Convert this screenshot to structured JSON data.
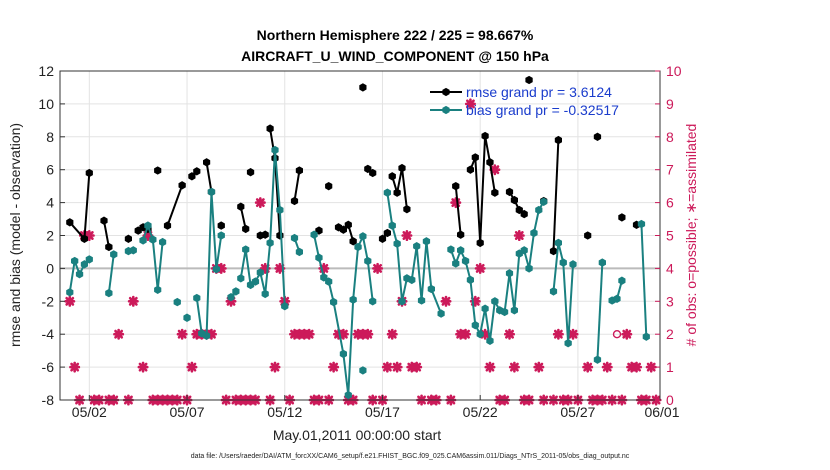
{
  "chart_data": {
    "type": "line",
    "title": [
      "Northern Hemisphere 222 / 225 = 98.667%",
      "AIRCRAFT_U_WIND_COMPONENT @ 150 hPa"
    ],
    "xlabel": "May.01,2011 00:00:00 start",
    "ylabel": "rmse and bias (model - observation)",
    "y2label": "# of obs: o=possible; ∗=assimilated",
    "footnote": "data file: /Users/raeder/DAI/ATM_forcXX/CAM6_setup/f.e21.FHIST_BGC.f09_025.CAM6assim.011/Diags_NTrS_2011-05/obs_diag_output.nc",
    "xlim": [
      0.5,
      31.2
    ],
    "ylim": [
      -8,
      12
    ],
    "y2lim": [
      0,
      10
    ],
    "x_ticks": [
      2,
      7,
      12,
      17,
      22,
      27,
      32
    ],
    "x_tick_labels": [
      "05/02",
      "05/07",
      "05/12",
      "05/17",
      "05/22",
      "05/27",
      "06/01"
    ],
    "y_ticks": [
      -8,
      -6,
      -4,
      -2,
      0,
      2,
      4,
      6,
      8,
      10,
      12
    ],
    "y2_ticks": [
      0,
      1,
      2,
      3,
      4,
      5,
      6,
      7,
      8,
      9,
      10
    ],
    "legend": {
      "location": "top-right",
      "entries": [
        "rmse grand pr = 3.6124",
        "bias grand pr = -0.32517"
      ]
    },
    "series": [
      {
        "name": "rmse",
        "color": "#000000",
        "marker": "hexagon",
        "axis": "left",
        "points": [
          [
            1.0,
            2.8
          ],
          [
            1.75,
            1.8
          ],
          [
            2.0,
            5.8
          ],
          null,
          [
            2.75,
            2.9
          ],
          [
            3.0,
            1.3
          ],
          null,
          [
            4.0,
            1.8
          ],
          null,
          [
            4.5,
            2.3
          ],
          [
            4.75,
            2.5
          ],
          [
            5.0,
            2.4
          ],
          null,
          [
            5.5,
            5.95
          ],
          null,
          [
            6.0,
            2.6
          ],
          [
            6.75,
            5.05
          ],
          null,
          [
            7.25,
            5.6
          ],
          [
            7.5,
            5.9
          ],
          null,
          [
            8.0,
            6.45
          ],
          [
            8.25,
            4.65
          ],
          null,
          [
            8.75,
            2.6
          ],
          null,
          [
            9.75,
            3.75
          ],
          [
            10.0,
            2.4
          ],
          null,
          [
            10.25,
            5.85
          ],
          null,
          [
            10.75,
            2.0
          ],
          [
            11.0,
            2.05
          ],
          null,
          [
            11.25,
            8.5
          ],
          [
            11.5,
            6.7
          ],
          [
            11.75,
            2.0
          ],
          null,
          [
            12.5,
            4.1
          ],
          [
            12.75,
            5.95
          ],
          null,
          [
            13.75,
            2.3
          ],
          null,
          [
            14.25,
            5.0
          ],
          null,
          [
            14.75,
            2.5
          ],
          [
            15.0,
            2.35
          ],
          [
            15.25,
            2.65
          ],
          [
            15.5,
            1.65
          ],
          null,
          [
            16.0,
            11.0
          ],
          null,
          [
            16.25,
            6.05
          ],
          [
            16.5,
            5.8
          ],
          null,
          [
            17.0,
            1.8
          ],
          [
            17.25,
            2.15
          ],
          null,
          [
            17.5,
            5.6
          ],
          [
            17.75,
            4.6
          ],
          [
            18.0,
            6.1
          ],
          [
            18.25,
            3.6
          ],
          null,
          [
            20.75,
            5.0
          ],
          [
            21.0,
            2.05
          ],
          null,
          [
            21.5,
            6.0
          ],
          [
            21.75,
            6.75
          ],
          [
            22.0,
            1.55
          ],
          [
            22.25,
            8.05
          ],
          [
            22.5,
            6.45
          ],
          [
            22.75,
            4.6
          ],
          null,
          [
            23.5,
            4.65
          ],
          [
            23.75,
            4.15
          ],
          [
            24.0,
            3.55
          ],
          [
            24.25,
            3.3
          ],
          null,
          [
            24.5,
            11.45
          ],
          null,
          [
            25.25,
            4.1
          ],
          null,
          [
            25.75,
            1.05
          ],
          [
            26.0,
            7.8
          ],
          null,
          [
            27.5,
            2.0
          ],
          null,
          [
            28.0,
            8.0
          ],
          null,
          [
            29.25,
            3.1
          ],
          null,
          [
            30.0,
            2.65
          ]
        ]
      },
      {
        "name": "bias",
        "color": "#1a8080",
        "marker": "hexagon",
        "axis": "left",
        "points": [
          [
            1.0,
            -1.45
          ],
          [
            1.25,
            0.45
          ],
          [
            1.5,
            -0.35
          ],
          [
            1.75,
            0.25
          ],
          [
            2.0,
            0.55
          ],
          null,
          [
            3.0,
            -1.5
          ],
          [
            3.25,
            0.85
          ],
          null,
          [
            4.0,
            1.05
          ],
          [
            4.25,
            1.1
          ],
          null,
          [
            4.75,
            1.7
          ],
          [
            5.0,
            2.6
          ],
          [
            5.25,
            1.75
          ],
          [
            5.5,
            -1.3
          ],
          [
            5.75,
            1.6
          ],
          null,
          [
            6.5,
            -2.05
          ],
          null,
          [
            7.0,
            -3.0
          ],
          null,
          [
            7.5,
            -1.8
          ],
          [
            7.75,
            -3.95
          ],
          [
            8.0,
            -4.1
          ],
          [
            8.25,
            4.65
          ],
          [
            8.5,
            -0.05
          ],
          [
            8.75,
            2.0
          ],
          null,
          [
            9.25,
            -1.75
          ],
          [
            9.5,
            -1.4
          ],
          null,
          [
            9.75,
            -0.6
          ],
          [
            10.0,
            1.15
          ],
          [
            10.25,
            -1.0
          ],
          [
            10.5,
            -0.8
          ],
          [
            10.75,
            -0.25
          ],
          [
            11.0,
            -1.55
          ],
          [
            11.25,
            1.55
          ],
          [
            11.5,
            7.2
          ],
          [
            11.75,
            3.55
          ],
          [
            12.0,
            -2.3
          ],
          null,
          [
            12.5,
            1.85
          ],
          [
            12.75,
            1.0
          ],
          null,
          [
            13.5,
            2.05
          ],
          [
            13.75,
            0.65
          ],
          [
            14.0,
            -0.55
          ],
          [
            14.25,
            -0.8
          ],
          [
            14.5,
            -2.05
          ],
          [
            15.0,
            -5.2
          ],
          [
            15.25,
            -7.7
          ],
          [
            15.5,
            -1.9
          ],
          [
            15.75,
            1.3
          ],
          [
            16.0,
            1.95
          ],
          [
            16.25,
            0.45
          ],
          [
            16.5,
            -2.0
          ],
          null,
          [
            16.0,
            -6.2
          ],
          null,
          [
            17.25,
            4.6
          ],
          [
            17.5,
            2.6
          ],
          [
            17.75,
            1.5
          ],
          [
            18.0,
            -2.0
          ],
          [
            18.25,
            -0.6
          ],
          [
            18.5,
            -0.7
          ],
          [
            18.75,
            1.35
          ],
          [
            19.0,
            -1.95
          ],
          [
            19.25,
            1.65
          ],
          [
            19.5,
            -1.25
          ],
          [
            20.0,
            -2.75
          ],
          null,
          [
            20.5,
            1.15
          ],
          [
            20.75,
            0.3
          ],
          [
            21.0,
            1.1
          ],
          [
            21.25,
            0.45
          ],
          [
            21.5,
            -0.7
          ],
          [
            21.75,
            -3.45
          ],
          [
            22.0,
            -4.0
          ],
          [
            22.25,
            -2.45
          ],
          [
            22.5,
            -4.4
          ],
          [
            22.75,
            -2.0
          ],
          [
            23.0,
            -2.55
          ],
          [
            23.25,
            -2.65
          ],
          [
            23.5,
            -0.3
          ],
          [
            23.75,
            -2.55
          ],
          [
            24.0,
            0.9
          ],
          [
            24.25,
            1.1
          ],
          [
            24.5,
            0.0
          ],
          [
            24.75,
            2.15
          ],
          [
            25.0,
            3.55
          ],
          [
            25.25,
            4.05
          ],
          null,
          [
            25.75,
            -1.4
          ],
          [
            26.0,
            1.55
          ],
          [
            26.25,
            0.35
          ],
          [
            26.5,
            -4.55
          ],
          [
            26.75,
            0.25
          ],
          null,
          [
            28.0,
            -5.55
          ],
          [
            28.25,
            0.35
          ],
          null,
          [
            28.75,
            -1.95
          ],
          [
            29.0,
            -1.85
          ],
          [
            29.25,
            -0.75
          ],
          null,
          [
            30.25,
            2.7
          ],
          [
            30.5,
            -4.15
          ]
        ]
      },
      {
        "name": "obs possible",
        "color": "#cc1a5a",
        "marker": "circle",
        "axis": "right",
        "points": [
          [
            29.0,
            2
          ]
        ]
      },
      {
        "name": "obs assimilated",
        "color": "#cc1a5a",
        "marker": "star",
        "axis": "right",
        "points": [
          [
            1.0,
            3
          ],
          [
            1.25,
            1
          ],
          [
            1.5,
            0
          ],
          [
            1.75,
            5
          ],
          [
            2.0,
            5
          ],
          [
            2.25,
            0
          ],
          [
            2.5,
            0
          ],
          [
            3.0,
            0
          ],
          [
            3.25,
            0
          ],
          [
            3.5,
            2
          ],
          [
            4.0,
            0
          ],
          [
            4.25,
            3
          ],
          [
            4.75,
            1
          ],
          [
            5.0,
            5
          ],
          [
            5.25,
            0
          ],
          [
            5.5,
            0
          ],
          [
            5.75,
            0
          ],
          [
            6.0,
            0
          ],
          [
            6.25,
            0
          ],
          [
            6.5,
            0
          ],
          [
            6.75,
            2
          ],
          [
            7.0,
            0
          ],
          [
            7.25,
            1
          ],
          [
            7.5,
            2
          ],
          [
            7.75,
            2
          ],
          [
            8.0,
            2
          ],
          [
            8.25,
            2
          ],
          [
            8.5,
            4
          ],
          [
            8.75,
            4
          ],
          [
            9.0,
            0
          ],
          [
            9.25,
            3
          ],
          [
            9.5,
            0
          ],
          [
            9.75,
            0
          ],
          [
            10.0,
            0
          ],
          [
            10.25,
            0
          ],
          [
            10.5,
            0
          ],
          [
            10.75,
            6
          ],
          [
            11.0,
            4
          ],
          [
            11.25,
            0
          ],
          [
            11.5,
            1
          ],
          [
            11.75,
            4
          ],
          [
            12.0,
            3
          ],
          [
            12.25,
            0
          ],
          [
            12.5,
            2
          ],
          [
            12.75,
            2
          ],
          [
            13.0,
            2
          ],
          [
            13.25,
            2
          ],
          [
            13.5,
            0
          ],
          [
            13.75,
            0
          ],
          [
            14.0,
            4
          ],
          [
            14.25,
            0
          ],
          [
            14.5,
            1
          ],
          [
            14.75,
            2
          ],
          [
            15.0,
            2
          ],
          [
            15.25,
            0
          ],
          [
            15.5,
            0
          ],
          [
            15.75,
            2
          ],
          [
            16.0,
            2
          ],
          [
            16.25,
            2
          ],
          [
            16.5,
            0
          ],
          [
            16.75,
            4
          ],
          [
            17.0,
            0
          ],
          [
            17.25,
            1
          ],
          [
            17.5,
            2
          ],
          [
            17.75,
            1
          ],
          [
            18.0,
            3
          ],
          [
            18.25,
            5
          ],
          [
            18.5,
            1
          ],
          [
            18.75,
            1
          ],
          [
            19.0,
            0
          ],
          [
            19.5,
            0
          ],
          [
            19.75,
            0
          ],
          [
            20.25,
            3
          ],
          [
            20.5,
            0
          ],
          [
            20.75,
            6
          ],
          [
            21.0,
            2
          ],
          [
            21.25,
            2
          ],
          [
            21.5,
            9
          ],
          [
            21.75,
            3
          ],
          [
            22.0,
            4
          ],
          [
            22.25,
            2
          ],
          [
            22.5,
            1
          ],
          [
            22.75,
            7
          ],
          [
            23.0,
            0
          ],
          [
            23.25,
            0
          ],
          [
            23.5,
            2
          ],
          [
            23.75,
            1
          ],
          [
            24.0,
            5
          ],
          [
            24.25,
            0
          ],
          [
            24.5,
            0
          ],
          [
            25.0,
            1
          ],
          [
            25.25,
            0
          ],
          [
            25.75,
            0
          ],
          [
            26.0,
            2
          ],
          [
            26.25,
            0
          ],
          [
            26.5,
            0
          ],
          [
            26.75,
            2
          ],
          [
            27.0,
            0
          ],
          [
            27.5,
            1
          ],
          [
            27.75,
            0
          ],
          [
            28.0,
            0
          ],
          [
            28.25,
            0
          ],
          [
            28.5,
            1
          ],
          [
            28.75,
            0
          ],
          [
            29.25,
            0
          ],
          [
            29.5,
            2
          ],
          [
            29.75,
            1
          ],
          [
            30.0,
            1
          ],
          [
            30.25,
            0
          ],
          [
            30.5,
            0
          ],
          [
            30.75,
            1
          ],
          [
            31.0,
            0
          ]
        ]
      }
    ]
  }
}
